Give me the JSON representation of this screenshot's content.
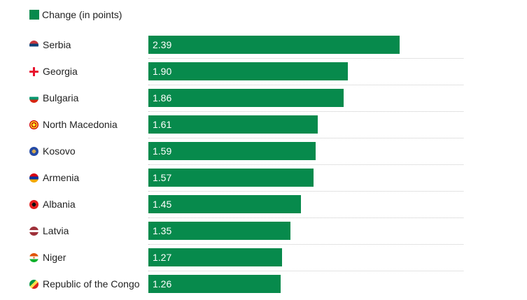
{
  "legend": {
    "label": "Change (in points)",
    "color": "#078a4c"
  },
  "chart_data": {
    "type": "bar",
    "orientation": "horizontal",
    "title": "",
    "xlabel": "",
    "ylabel": "",
    "xlim": [
      0,
      3.0
    ],
    "categories": [
      "Serbia",
      "Georgia",
      "Bulgaria",
      "North Macedonia",
      "Kosovo",
      "Armenia",
      "Albania",
      "Latvia",
      "Niger",
      "Republic of the Congo"
    ],
    "series": [
      {
        "name": "Change (in points)",
        "values": [
          2.39,
          1.9,
          1.86,
          1.61,
          1.59,
          1.57,
          1.45,
          1.35,
          1.27,
          1.26
        ]
      }
    ],
    "value_labels": [
      "2.39",
      "1.90",
      "1.86",
      "1.61",
      "1.59",
      "1.57",
      "1.45",
      "1.35",
      "1.27",
      "1.26"
    ],
    "flag_icons": [
      "serbia-flag-icon",
      "georgia-flag-icon",
      "bulgaria-flag-icon",
      "north-macedonia-flag-icon",
      "kosovo-flag-icon",
      "armenia-flag-icon",
      "albania-flag-icon",
      "latvia-flag-icon",
      "niger-flag-icon",
      "republic-of-the-congo-flag-icon"
    ],
    "bar_color": "#078a4c"
  }
}
